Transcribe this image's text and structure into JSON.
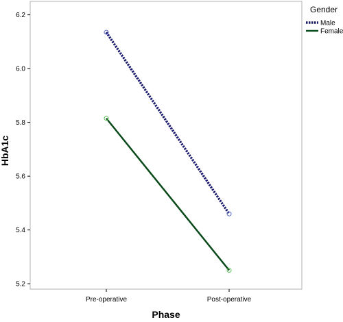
{
  "chart_data": {
    "type": "line",
    "categories": [
      "Pre-operative",
      "Post-operative"
    ],
    "series": [
      {
        "name": "Male",
        "values": [
          6.135,
          5.46
        ],
        "color": "#1c1c6e",
        "dash": "dotted"
      },
      {
        "name": "Female",
        "values": [
          5.815,
          5.25
        ],
        "color": "#0b4a1a",
        "dash": "solid"
      }
    ],
    "marker_colors": {
      "Male": "#5d6ec5",
      "Female": "#5cbf5c"
    },
    "xlabel": "Phase",
    "ylabel": "HbA1c",
    "ylim": [
      5.18,
      6.25
    ],
    "yticks": [
      "5.2",
      "5.4",
      "5.6",
      "5.8",
      "6.0",
      "6.2"
    ],
    "legend": {
      "title": "Gender",
      "placement": "right"
    },
    "grid": false
  }
}
